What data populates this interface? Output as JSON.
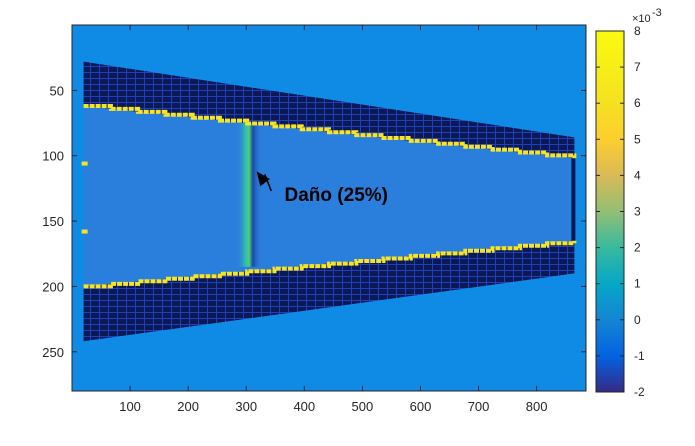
{
  "chart_data": {
    "type": "heatmap",
    "title": "",
    "xlabel": "",
    "ylabel": "",
    "x_ticks": [
      100,
      200,
      300,
      400,
      500,
      600,
      700,
      800
    ],
    "y_ticks": [
      50,
      100,
      150,
      200,
      250
    ],
    "xlim": [
      0,
      885
    ],
    "ylim": [
      0,
      280
    ],
    "y_direction": "reverse",
    "grid": false,
    "colormap": "parula",
    "background_color": "#0f8be6",
    "field_color": "#2a7fdc",
    "outer_band_color": "#0b1a55",
    "edge_color": "#f5e52a",
    "colorbar": {
      "min": -2,
      "max": 8,
      "ticks": [
        8,
        7,
        6,
        5,
        4,
        3,
        2,
        1,
        0,
        -1,
        -2
      ],
      "tick_labels": [
        "8",
        "7",
        "6",
        "5",
        "4",
        "3",
        "2",
        "1",
        "0",
        "-1",
        "-2"
      ],
      "exponent_label": "×10",
      "exponent_power": "-3"
    },
    "regions": {
      "upper_band": {
        "left": [
          20,
          28,
          62
        ],
        "right": [
          865,
          86,
          102
        ]
      },
      "lower_band": {
        "left": [
          20,
          200,
          242
        ],
        "right": [
          865,
          165,
          190
        ]
      },
      "edge_markers_y": [
        106,
        158
      ]
    },
    "damage_zone": {
      "x": 305,
      "y_range": [
        75,
        185
      ]
    },
    "annotations": [
      {
        "text": "Daño (25%)",
        "text_x": 455,
        "text_y": 130,
        "arrow_to_x": 318,
        "arrow_to_y": 112
      }
    ]
  }
}
